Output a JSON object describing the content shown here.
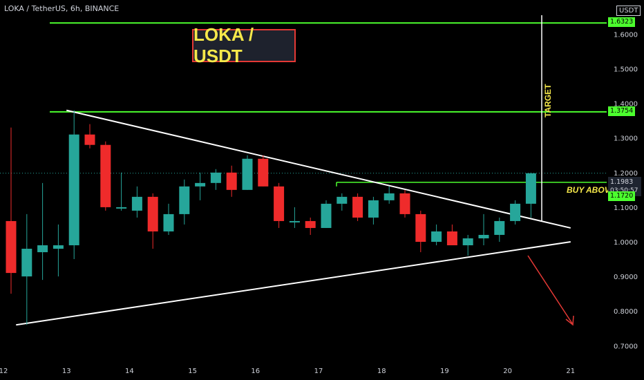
{
  "header": {
    "symbol": "LOKA / TetherUS, 6h, BINANCE",
    "currency": "USDT"
  },
  "annotations": {
    "title_box": "LOKA / USDT",
    "buy_above": "BUY ABOVE",
    "target": "TARGET"
  },
  "price_tags": {
    "target_high": "1.6323",
    "target_mid": "1.3754",
    "current_price": "1.1983",
    "countdown": "03:50:57",
    "buy_level": "1.1720"
  },
  "colors": {
    "up": "#26a69a",
    "down": "#ef2b2b",
    "level": "#4cff2e",
    "trendline": "#ffffff",
    "annotation_text": "#f5e84a",
    "arrow": "#e53935"
  },
  "chart_data": {
    "type": "candlestick",
    "x_ticks": [
      "12",
      "13",
      "14",
      "15",
      "16",
      "17",
      "18",
      "19",
      "20",
      "21"
    ],
    "y_ticks": [
      "0.7000",
      "0.8000",
      "0.9000",
      "1.0000",
      "1.1000",
      "1.2000",
      "1.3000",
      "1.4000",
      "1.5000",
      "1.6000"
    ],
    "ylim": [
      0.66,
      1.68
    ],
    "candles": [
      {
        "t": 12.0,
        "o": 1.06,
        "h": 1.33,
        "l": 0.85,
        "c": 0.91
      },
      {
        "t": 12.25,
        "o": 0.9,
        "h": 1.08,
        "l": 0.76,
        "c": 0.98
      },
      {
        "t": 12.5,
        "o": 0.97,
        "h": 1.17,
        "l": 0.89,
        "c": 0.99
      },
      {
        "t": 12.75,
        "o": 0.98,
        "h": 1.05,
        "l": 0.9,
        "c": 0.99
      },
      {
        "t": 13.0,
        "o": 0.99,
        "h": 1.38,
        "l": 0.95,
        "c": 1.31
      },
      {
        "t": 13.25,
        "o": 1.31,
        "h": 1.34,
        "l": 1.27,
        "c": 1.28
      },
      {
        "t": 13.5,
        "o": 1.28,
        "h": 1.29,
        "l": 1.09,
        "c": 1.1
      },
      {
        "t": 13.75,
        "o": 1.1,
        "h": 1.2,
        "l": 1.09,
        "c": 1.1
      },
      {
        "t": 14.0,
        "o": 1.09,
        "h": 1.16,
        "l": 1.07,
        "c": 1.13
      },
      {
        "t": 14.25,
        "o": 1.13,
        "h": 1.14,
        "l": 0.98,
        "c": 1.03
      },
      {
        "t": 14.5,
        "o": 1.03,
        "h": 1.11,
        "l": 1.02,
        "c": 1.08
      },
      {
        "t": 14.75,
        "o": 1.08,
        "h": 1.18,
        "l": 1.05,
        "c": 1.16
      },
      {
        "t": 15.0,
        "o": 1.16,
        "h": 1.2,
        "l": 1.12,
        "c": 1.17
      },
      {
        "t": 15.25,
        "o": 1.17,
        "h": 1.21,
        "l": 1.15,
        "c": 1.2
      },
      {
        "t": 15.5,
        "o": 1.2,
        "h": 1.22,
        "l": 1.13,
        "c": 1.15
      },
      {
        "t": 15.75,
        "o": 1.15,
        "h": 1.25,
        "l": 1.15,
        "c": 1.24
      },
      {
        "t": 16.0,
        "o": 1.24,
        "h": 1.25,
        "l": 1.16,
        "c": 1.16
      },
      {
        "t": 16.25,
        "o": 1.16,
        "h": 1.17,
        "l": 1.04,
        "c": 1.06
      },
      {
        "t": 16.5,
        "o": 1.06,
        "h": 1.1,
        "l": 1.04,
        "c": 1.06
      },
      {
        "t": 16.75,
        "o": 1.06,
        "h": 1.07,
        "l": 1.02,
        "c": 1.04
      },
      {
        "t": 17.0,
        "o": 1.04,
        "h": 1.12,
        "l": 1.04,
        "c": 1.11
      },
      {
        "t": 17.25,
        "o": 1.11,
        "h": 1.14,
        "l": 1.09,
        "c": 1.13
      },
      {
        "t": 17.5,
        "o": 1.13,
        "h": 1.14,
        "l": 1.06,
        "c": 1.07
      },
      {
        "t": 17.75,
        "o": 1.07,
        "h": 1.13,
        "l": 1.05,
        "c": 1.12
      },
      {
        "t": 18.0,
        "o": 1.12,
        "h": 1.16,
        "l": 1.11,
        "c": 1.14
      },
      {
        "t": 18.25,
        "o": 1.14,
        "h": 1.15,
        "l": 1.07,
        "c": 1.08
      },
      {
        "t": 18.5,
        "o": 1.08,
        "h": 1.09,
        "l": 0.97,
        "c": 1.0
      },
      {
        "t": 18.75,
        "o": 1.0,
        "h": 1.05,
        "l": 0.99,
        "c": 1.03
      },
      {
        "t": 19.0,
        "o": 1.03,
        "h": 1.05,
        "l": 0.99,
        "c": 0.99
      },
      {
        "t": 19.25,
        "o": 0.99,
        "h": 1.02,
        "l": 0.96,
        "c": 1.01
      },
      {
        "t": 19.5,
        "o": 1.01,
        "h": 1.08,
        "l": 0.99,
        "c": 1.02
      },
      {
        "t": 19.75,
        "o": 1.02,
        "h": 1.07,
        "l": 1.0,
        "c": 1.06
      },
      {
        "t": 20.0,
        "o": 1.06,
        "h": 1.12,
        "l": 1.05,
        "c": 1.11
      },
      {
        "t": 20.25,
        "o": 1.11,
        "h": 1.2,
        "l": 1.07,
        "c": 1.198
      }
    ],
    "levels": [
      1.6323,
      1.3754,
      1.172
    ],
    "current_price": 1.1983,
    "trendlines": [
      {
        "from": [
          13.0,
          1.38
        ],
        "to": [
          21.0,
          1.04
        ]
      },
      {
        "from": [
          12.2,
          0.76
        ],
        "to": [
          21.0,
          1.0
        ]
      }
    ]
  }
}
